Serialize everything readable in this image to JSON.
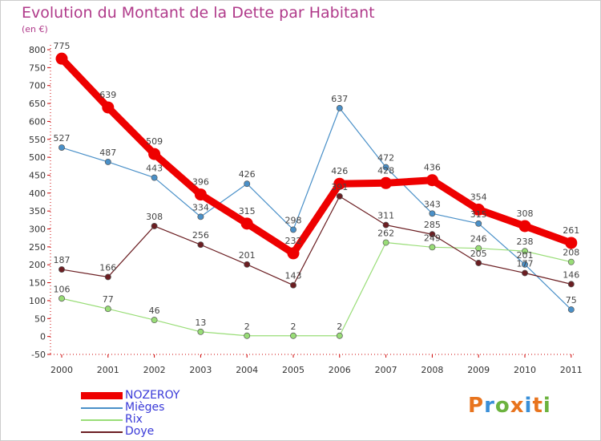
{
  "title": "Evolution du Montant de la Dette par Habitant",
  "unit": "(en €)",
  "brand": {
    "letters": [
      "P",
      "r",
      "o",
      "x",
      "i",
      "t",
      "i"
    ],
    "colors": [
      "#e8741e",
      "#3a8fd8",
      "#6cb33f",
      "#e8741e",
      "#3a8fd8",
      "#e8741e",
      "#6cb33f"
    ]
  },
  "chart_data": {
    "type": "line",
    "title": "Evolution du Montant de la Dette par Habitant",
    "ylabel": "(en €)",
    "xlabel": "",
    "x": [
      "2000",
      "2001",
      "2002",
      "2003",
      "2004",
      "2005",
      "2006",
      "2007",
      "2008",
      "2009",
      "2010",
      "2011"
    ],
    "ylim": [
      -50,
      800
    ],
    "yticks": [
      -50,
      0,
      50,
      100,
      150,
      200,
      250,
      300,
      350,
      400,
      450,
      500,
      550,
      600,
      650,
      700,
      750,
      800
    ],
    "grid": false,
    "legend_position": "bottom-left",
    "series": [
      {
        "name": "NOZEROY",
        "color": "#ee0000",
        "values": [
          775,
          639,
          509,
          396,
          315,
          232,
          426,
          428,
          436,
          354,
          308,
          261
        ]
      },
      {
        "name": "Mièges",
        "color": "#4a90c8",
        "values": [
          527,
          487,
          443,
          334,
          426,
          298,
          637,
          472,
          343,
          315,
          201,
          75
        ]
      },
      {
        "name": "Rix",
        "color": "#99dd77",
        "values": [
          106,
          77,
          46,
          13,
          2,
          2,
          2,
          262,
          249,
          246,
          238,
          208
        ]
      },
      {
        "name": "Doye",
        "color": "#6b1e22",
        "values": [
          187,
          166,
          308,
          256,
          201,
          143,
          391,
          311,
          285,
          205,
          177,
          146
        ]
      }
    ]
  }
}
